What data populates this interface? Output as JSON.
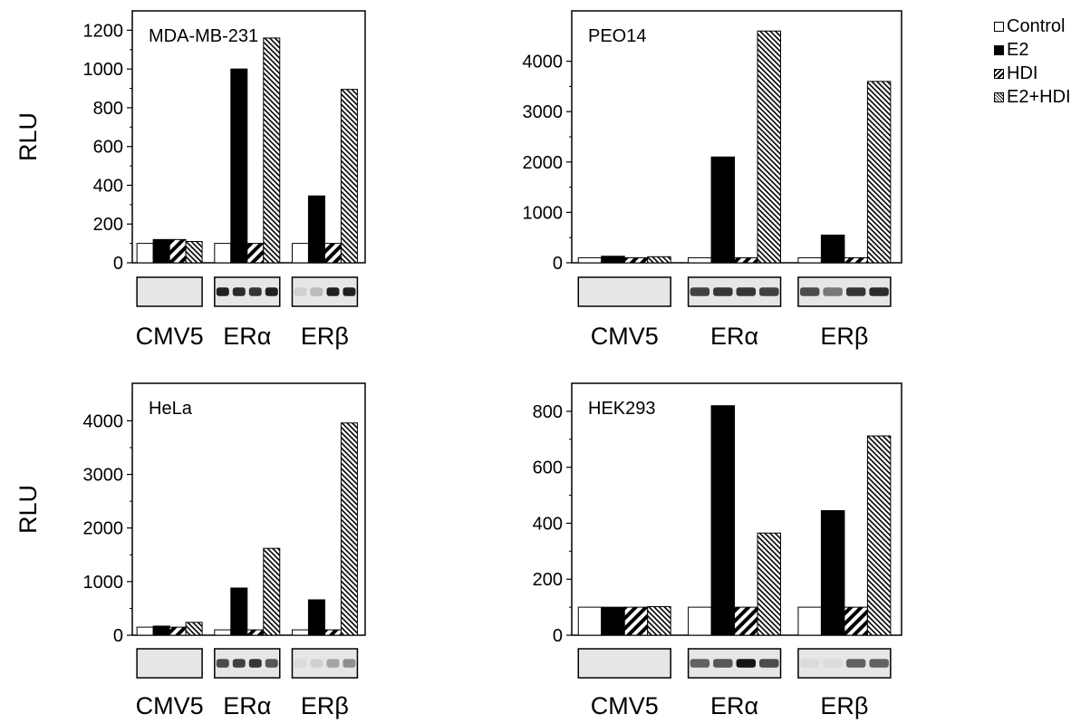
{
  "figure": {
    "legend": [
      {
        "key": "control",
        "label": "Control",
        "pattern": "white"
      },
      {
        "key": "e2",
        "label": "E2",
        "pattern": "black"
      },
      {
        "key": "hdi",
        "label": "HDI",
        "pattern": "wide-diagonal"
      },
      {
        "key": "e2hdi",
        "label": "E2+HDI",
        "pattern": "fine-diagonal"
      }
    ],
    "ylabel": "RLU"
  },
  "chart_data": [
    {
      "type": "bar",
      "title": "MDA-MB-231",
      "ylabel": "RLU",
      "categories": [
        "CMV5",
        "ERα",
        "ERβ"
      ],
      "ylim": [
        0,
        1300
      ],
      "yticks": [
        0,
        200,
        400,
        600,
        800,
        1000,
        1200
      ],
      "series": [
        {
          "name": "Control",
          "values": [
            100,
            100,
            100
          ]
        },
        {
          "name": "E2",
          "values": [
            120,
            1000,
            345
          ]
        },
        {
          "name": "HDI",
          "values": [
            120,
            100,
            100
          ]
        },
        {
          "name": "E2+HDI",
          "values": [
            110,
            1160,
            895
          ]
        }
      ]
    },
    {
      "type": "bar",
      "title": "PEO14",
      "ylabel": "",
      "categories": [
        "CMV5",
        "ERα",
        "ERβ"
      ],
      "ylim": [
        0,
        5000
      ],
      "yticks": [
        0,
        1000,
        2000,
        3000,
        4000
      ],
      "series": [
        {
          "name": "Control",
          "values": [
            100,
            100,
            100
          ]
        },
        {
          "name": "E2",
          "values": [
            130,
            2100,
            550
          ]
        },
        {
          "name": "HDI",
          "values": [
            100,
            100,
            100
          ]
        },
        {
          "name": "E2+HDI",
          "values": [
            120,
            4600,
            3600
          ]
        }
      ]
    },
    {
      "type": "bar",
      "title": "HeLa",
      "ylabel": "RLU",
      "categories": [
        "CMV5",
        "ERα",
        "ERβ"
      ],
      "ylim": [
        0,
        4700
      ],
      "yticks": [
        0,
        1000,
        2000,
        3000,
        4000
      ],
      "series": [
        {
          "name": "Control",
          "values": [
            150,
            100,
            100
          ]
        },
        {
          "name": "E2",
          "values": [
            170,
            880,
            660
          ]
        },
        {
          "name": "HDI",
          "values": [
            150,
            100,
            100
          ]
        },
        {
          "name": "E2+HDI",
          "values": [
            240,
            1620,
            3960
          ]
        }
      ]
    },
    {
      "type": "bar",
      "title": "HEK293",
      "ylabel": "",
      "categories": [
        "CMV5",
        "ERα",
        "ERβ"
      ],
      "ylim": [
        0,
        900
      ],
      "yticks": [
        0,
        200,
        400,
        600,
        800
      ],
      "series": [
        {
          "name": "Control",
          "values": [
            100,
            100,
            100
          ]
        },
        {
          "name": "E2",
          "values": [
            100,
            820,
            445
          ]
        },
        {
          "name": "HDI",
          "values": [
            100,
            100,
            100
          ]
        },
        {
          "name": "E2+HDI",
          "values": [
            102,
            365,
            712
          ]
        }
      ]
    }
  ],
  "blots": [
    {
      "cmv5": [],
      "era": [
        0.9,
        0.85,
        0.8,
        0.9
      ],
      "erb": [
        0.1,
        0.2,
        0.9,
        0.9
      ]
    },
    {
      "cmv5": [],
      "era": [
        0.75,
        0.8,
        0.8,
        0.75
      ],
      "erb": [
        0.7,
        0.5,
        0.8,
        0.85
      ]
    },
    {
      "cmv5": [],
      "era": [
        0.7,
        0.75,
        0.8,
        0.65
      ],
      "erb": [
        0.05,
        0.1,
        0.3,
        0.4
      ]
    },
    {
      "cmv5": [],
      "era": [
        0.6,
        0.65,
        0.95,
        0.7
      ],
      "erb": [
        0.05,
        0.05,
        0.6,
        0.6
      ]
    }
  ]
}
